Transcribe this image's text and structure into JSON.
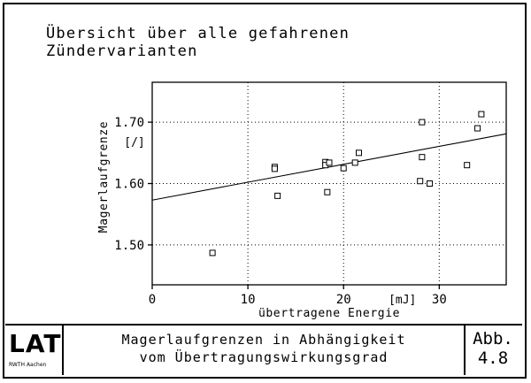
{
  "chart_data": {
    "type": "scatter",
    "title_lines": [
      "Übersicht über alle gefahrenen",
      "Zündervarianten"
    ],
    "xlabel": "übertragene Energie",
    "x_unit": "[mJ]",
    "ylabel": "Magerlaufgrenze",
    "y_unit": "[/]",
    "xlim": [
      0,
      37
    ],
    "ylim": [
      1.435,
      1.765
    ],
    "x_ticks": [
      0,
      10,
      20,
      30
    ],
    "x_tick_labels": [
      "0",
      "10",
      "20",
      "30"
    ],
    "y_ticks": [
      1.5,
      1.6,
      1.7
    ],
    "y_tick_labels": [
      "1.50",
      "1.60",
      "1.70"
    ],
    "grid": "dotted",
    "points": [
      {
        "x": 6.3,
        "y": 1.487
      },
      {
        "x": 12.8,
        "y": 1.627
      },
      {
        "x": 12.8,
        "y": 1.624
      },
      {
        "x": 13.1,
        "y": 1.58
      },
      {
        "x": 18.1,
        "y": 1.635
      },
      {
        "x": 18.1,
        "y": 1.63
      },
      {
        "x": 18.5,
        "y": 1.634
      },
      {
        "x": 18.3,
        "y": 1.586
      },
      {
        "x": 20.0,
        "y": 1.625
      },
      {
        "x": 21.2,
        "y": 1.634
      },
      {
        "x": 21.6,
        "y": 1.65
      },
      {
        "x": 28.2,
        "y": 1.7
      },
      {
        "x": 28.2,
        "y": 1.643
      },
      {
        "x": 28.0,
        "y": 1.604
      },
      {
        "x": 29.0,
        "y": 1.6
      },
      {
        "x": 32.9,
        "y": 1.63
      },
      {
        "x": 34.0,
        "y": 1.69
      },
      {
        "x": 34.4,
        "y": 1.713
      }
    ],
    "trend_line": {
      "x": [
        0,
        37
      ],
      "y": [
        1.573,
        1.681
      ]
    }
  },
  "footer": {
    "logo": "LAT",
    "logo_sub": "RWTH Aachen",
    "caption_line1": "Magerlaufgrenzen in Abhängigkeit",
    "caption_line2": "vom Übertragungswirkungsgrad",
    "fig_label": "Abb.",
    "fig_number": "4.8"
  }
}
